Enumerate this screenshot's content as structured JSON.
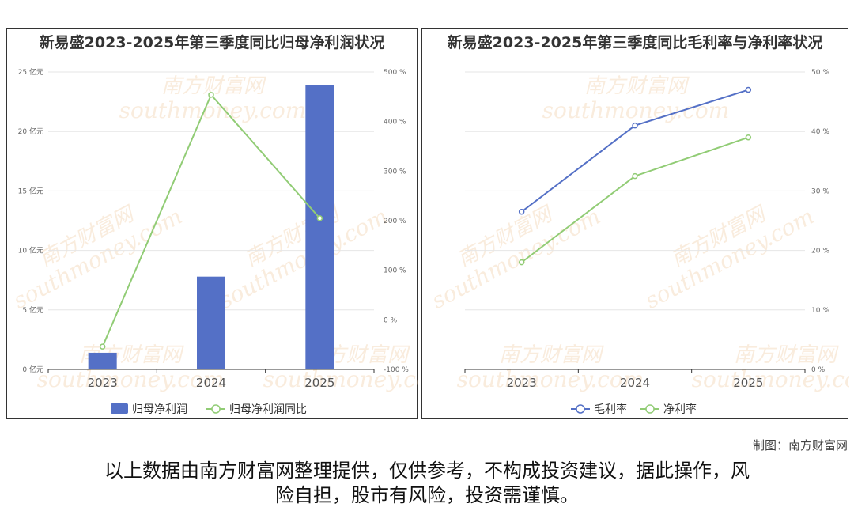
{
  "credit": "制图：南方财富网",
  "disclaimer_line1": "以上数据由南方财富网整理提供，仅供参考，不构成投资建议，据此操作，风",
  "disclaimer_line2": "险自担，股市有风险，投资需谨慎。",
  "watermark_cn": "南方财富网",
  "watermark_en": "southmoney.com",
  "chart_data": [
    {
      "type": "bar",
      "title": "新易盛2023-2025年第三季度同比归母净利润状况",
      "categories": [
        "2023",
        "2024",
        "2025"
      ],
      "series": [
        {
          "name": "归母净利润",
          "type": "bar",
          "axis": "left",
          "values": [
            1.4,
            7.8,
            23.9
          ],
          "color": "#5470c6"
        },
        {
          "name": "归母净利润同比",
          "type": "line",
          "axis": "right",
          "values": [
            -54,
            454,
            205
          ],
          "color": "#91cc75"
        }
      ],
      "yleft": {
        "min": 0,
        "max": 25,
        "ticks": [
          0,
          5,
          10,
          15,
          20,
          25
        ],
        "unit": "亿元"
      },
      "yright": {
        "min": -100,
        "max": 500,
        "ticks": [
          -100,
          0,
          100,
          200,
          300,
          400,
          500
        ],
        "unit": "%"
      },
      "legend": "bottom-center"
    },
    {
      "type": "line",
      "title": "新易盛2023-2025年第三季度同比毛利率与净利率状况",
      "categories": [
        "2023",
        "2024",
        "2025"
      ],
      "series": [
        {
          "name": "毛利率",
          "values": [
            26.5,
            41.0,
            47.0
          ],
          "color": "#5470c6"
        },
        {
          "name": "净利率",
          "values": [
            18.0,
            32.5,
            39.0
          ],
          "color": "#91cc75"
        }
      ],
      "yright": {
        "min": 0,
        "max": 50,
        "ticks": [
          0,
          10,
          20,
          30,
          40,
          50
        ],
        "unit": "%"
      },
      "legend": "bottom-center"
    }
  ]
}
